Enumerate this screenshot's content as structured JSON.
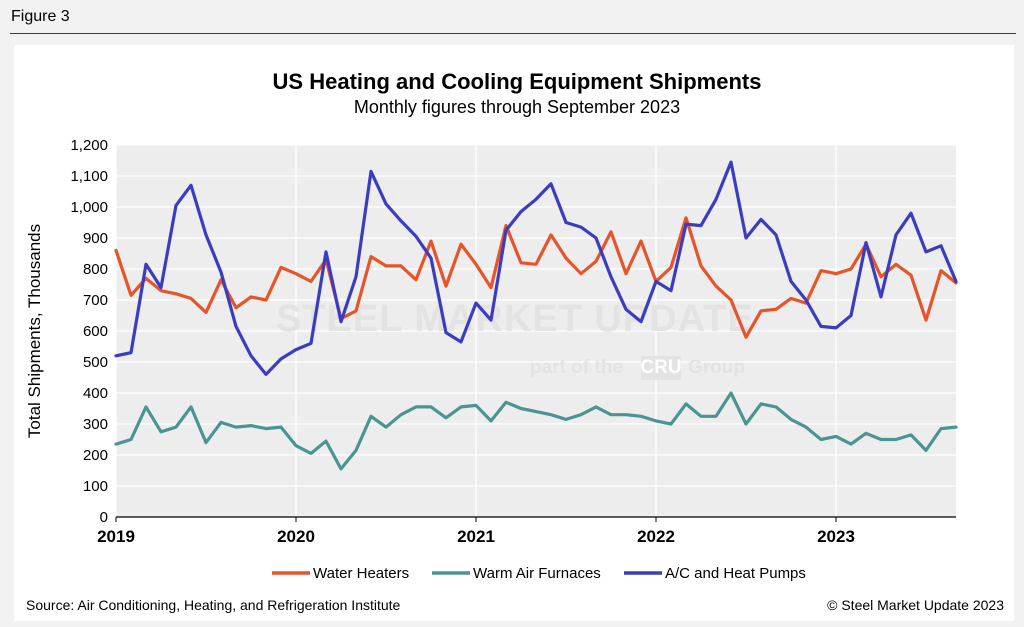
{
  "figure_label": "Figure 3",
  "source": "Source: Air Conditioning, Heating, and Refrigeration Institute",
  "copyright": "© Steel Market Update 2023",
  "watermark": {
    "main": "STEEL MARKET UPDATE",
    "sub_before": "part of the",
    "sub_logo": "CRU",
    "sub_after": "Group"
  },
  "colors": {
    "water_heaters": "#e8542a",
    "warm_air_furnaces": "#4a9593",
    "ac_heat_pumps": "#3a3dbf",
    "plot_bg": "#ededed",
    "grid": "#ffffff"
  },
  "chart_data": {
    "type": "line",
    "title": "US Heating and Cooling Equipment Shipments",
    "subtitle": "Monthly figures through September 2023",
    "ylabel": "Total Shipments, Thousands",
    "xlabel": "",
    "ylim": [
      0,
      1200
    ],
    "yticks": [
      "0",
      "100",
      "200",
      "300",
      "400",
      "500",
      "600",
      "700",
      "800",
      "900",
      "1,000",
      "1,100",
      "1,200"
    ],
    "x_start": "2019-01",
    "x_end": "2023-09",
    "x_year_labels": [
      "2019",
      "2020",
      "2021",
      "2022",
      "2023"
    ],
    "grid": true,
    "legend_position": "bottom",
    "series": [
      {
        "name": "Water Heaters",
        "color": "#e8542a",
        "values": [
          860,
          715,
          770,
          730,
          720,
          705,
          660,
          765,
          675,
          710,
          700,
          805,
          785,
          760,
          830,
          640,
          665,
          840,
          810,
          810,
          765,
          890,
          745,
          880,
          815,
          740,
          940,
          820,
          815,
          910,
          835,
          785,
          825,
          920,
          785,
          890,
          760,
          805,
          965,
          810,
          745,
          700,
          580,
          665,
          670,
          705,
          690,
          795,
          785,
          800,
          880,
          775,
          815,
          780,
          635,
          795,
          755
        ]
      },
      {
        "name": "Warm Air Furnaces",
        "color": "#4a9593",
        "values": [
          235,
          250,
          355,
          275,
          290,
          355,
          240,
          305,
          290,
          295,
          285,
          290,
          230,
          205,
          245,
          155,
          215,
          325,
          290,
          330,
          355,
          355,
          320,
          355,
          360,
          310,
          370,
          350,
          340,
          330,
          315,
          330,
          355,
          330,
          330,
          325,
          310,
          300,
          365,
          325,
          325,
          400,
          300,
          365,
          355,
          315,
          290,
          250,
          260,
          235,
          270,
          250,
          250,
          265,
          215,
          285,
          290
        ]
      },
      {
        "name": "A/C and Heat Pumps",
        "color": "#3a3dbf",
        "values": [
          520,
          530,
          815,
          740,
          1005,
          1070,
          910,
          790,
          615,
          520,
          460,
          510,
          540,
          560,
          855,
          630,
          775,
          1115,
          1010,
          955,
          905,
          835,
          595,
          565,
          690,
          635,
          925,
          985,
          1025,
          1075,
          950,
          935,
          900,
          775,
          670,
          630,
          760,
          730,
          945,
          940,
          1025,
          1145,
          900,
          960,
          910,
          760,
          700,
          615,
          610,
          650,
          885,
          710,
          910,
          980,
          855,
          875,
          760
        ]
      }
    ]
  }
}
